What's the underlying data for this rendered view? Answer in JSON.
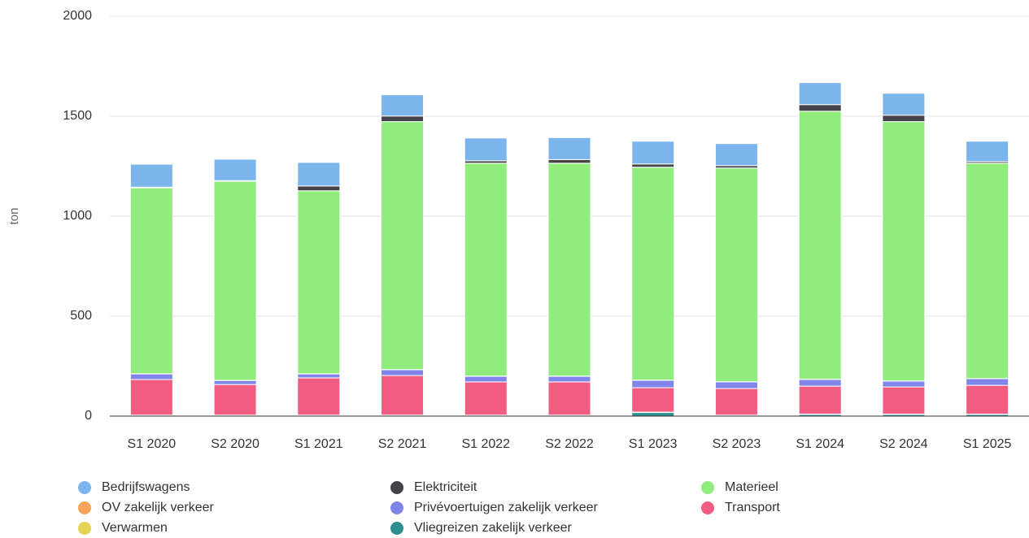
{
  "chart_data": {
    "type": "stacked_bar",
    "y_axis_label": "ton",
    "categories": [
      "S1 2020",
      "S2 2020",
      "S1 2021",
      "S2 2021",
      "S1 2022",
      "S2 2022",
      "S1 2023",
      "S2 2023",
      "S1 2024",
      "S2 2024",
      "S1 2025"
    ],
    "series": [
      {
        "name": "Bedrijfswagens",
        "color": "#7cb5ec",
        "values": [
          115,
          107,
          118,
          106,
          114,
          110,
          114,
          110,
          110,
          110,
          102
        ]
      },
      {
        "name": "Elektriciteit",
        "color": "#434348",
        "values": [
          3,
          3,
          24,
          28,
          12,
          18,
          16,
          12,
          33,
          32,
          8
        ]
      },
      {
        "name": "Materieel",
        "color": "#90ed7d",
        "values": [
          930,
          996,
          915,
          1240,
          1065,
          1065,
          1065,
          1069,
          1341,
          1297,
          1077
        ]
      },
      {
        "name": "OV zakelijk verkeer",
        "color": "#f7a35c",
        "values": [
          1,
          1,
          1,
          1,
          1,
          1,
          1,
          1,
          1,
          1,
          1
        ]
      },
      {
        "name": "Privévoertuigen zakelijk verkeer",
        "color": "#8085e9",
        "values": [
          28,
          20,
          20,
          29,
          28,
          28,
          37,
          33,
          33,
          29,
          33
        ]
      },
      {
        "name": "Transport",
        "color": "#f15c80",
        "values": [
          178,
          153,
          186,
          198,
          166,
          166,
          122,
          133,
          140,
          136,
          144
        ]
      },
      {
        "name": "Verwarmen",
        "color": "#e4d354",
        "values": [
          2,
          2,
          2,
          2,
          2,
          2,
          2,
          2,
          2,
          2,
          2
        ]
      },
      {
        "name": "Vliegreizen zakelijk verkeer",
        "color": "#2b908f",
        "values": [
          3,
          3,
          3,
          3,
          3,
          3,
          18,
          3,
          8,
          8,
          8
        ]
      }
    ],
    "ylim": [
      0,
      2000
    ],
    "yticks": [
      0,
      500,
      1000,
      1500,
      2000
    ],
    "grid": true,
    "legend": "bottom"
  }
}
